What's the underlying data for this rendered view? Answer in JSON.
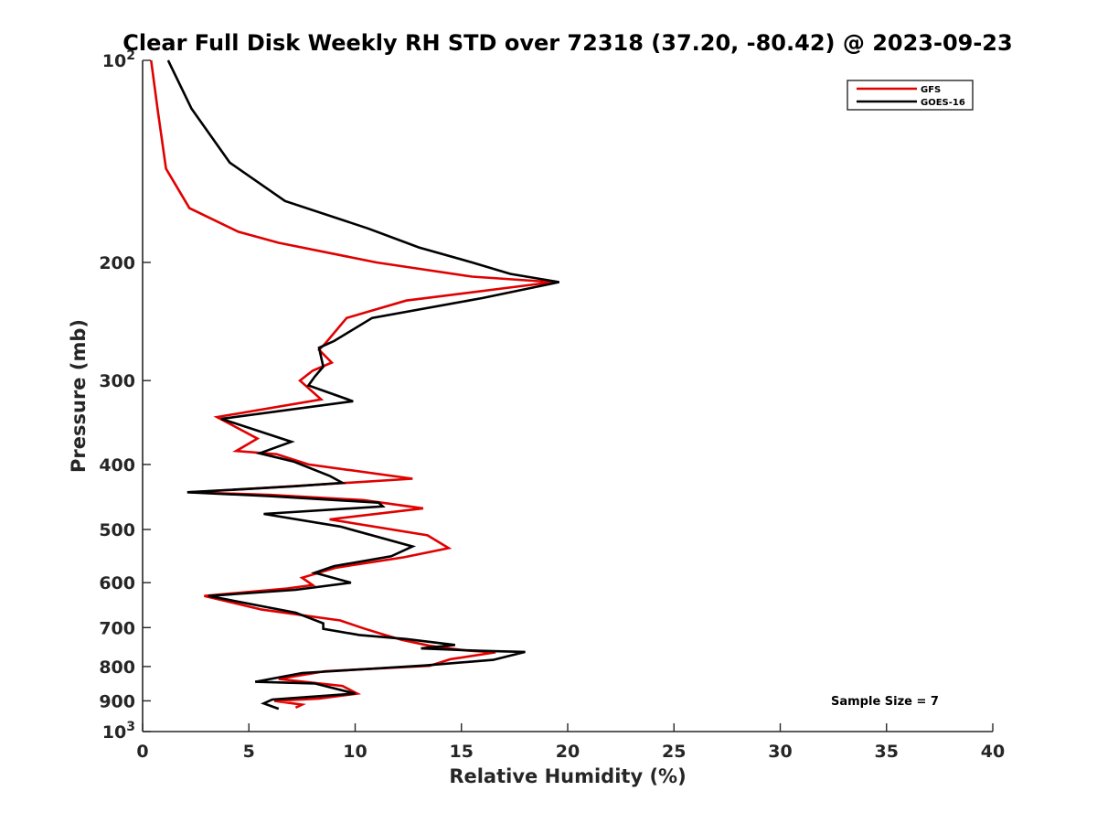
{
  "chart_data": {
    "type": "line",
    "title": "Clear Full Disk Weekly RH STD over 72318 (37.20, -80.42) @ 2023-09-23",
    "xlabel": "Relative Humidity (%)",
    "ylabel": "Pressure (mb)",
    "xlim": [
      0,
      40
    ],
    "ylim": [
      100,
      1000
    ],
    "yscale": "log",
    "y_reversed": true,
    "grid": false,
    "legend_position": "top-right",
    "x_ticks": [
      "0",
      "5",
      "10",
      "15",
      "20",
      "25",
      "30",
      "35",
      "40"
    ],
    "y_ticks": [
      {
        "value": 100,
        "base": "10",
        "exp": "2"
      },
      {
        "value": 200,
        "base": "200",
        "exp": ""
      },
      {
        "value": 300,
        "base": "300",
        "exp": ""
      },
      {
        "value": 400,
        "base": "400",
        "exp": ""
      },
      {
        "value": 500,
        "base": "500",
        "exp": ""
      },
      {
        "value": 600,
        "base": "600",
        "exp": ""
      },
      {
        "value": 700,
        "base": "700",
        "exp": ""
      },
      {
        "value": 800,
        "base": "800",
        "exp": ""
      },
      {
        "value": 900,
        "base": "900",
        "exp": ""
      },
      {
        "value": 1000,
        "base": "10",
        "exp": "3"
      }
    ],
    "annotation": "Sample Size = 7",
    "series": [
      {
        "name": "GFS",
        "color": "#e00000",
        "points": [
          [
            0.4,
            100
          ],
          [
            0.7,
            118
          ],
          [
            1.1,
            145
          ],
          [
            2.2,
            166
          ],
          [
            4.5,
            180
          ],
          [
            6.4,
            187
          ],
          [
            11.0,
            200
          ],
          [
            15.5,
            210
          ],
          [
            19.3,
            214
          ],
          [
            12.4,
            228
          ],
          [
            9.6,
            242
          ],
          [
            8.6,
            264
          ],
          [
            8.3,
            270
          ],
          [
            8.9,
            282
          ],
          [
            8.0,
            290
          ],
          [
            7.4,
            300
          ],
          [
            8.4,
            320
          ],
          [
            3.5,
            340
          ],
          [
            5.4,
            366
          ],
          [
            4.4,
            382
          ],
          [
            6.3,
            386
          ],
          [
            7.8,
            400
          ],
          [
            12.7,
            420
          ],
          [
            5.0,
            435
          ],
          [
            2.2,
            440
          ],
          [
            6.0,
            444
          ],
          [
            10.4,
            452
          ],
          [
            13.2,
            465
          ],
          [
            8.8,
            483
          ],
          [
            13.4,
            510
          ],
          [
            14.4,
            533
          ],
          [
            12.3,
            550
          ],
          [
            9.1,
            570
          ],
          [
            7.5,
            590
          ],
          [
            8.0,
            605
          ],
          [
            6.8,
            612
          ],
          [
            2.9,
            628
          ],
          [
            5.6,
            658
          ],
          [
            9.3,
            683
          ],
          [
            10.4,
            702
          ],
          [
            11.4,
            718
          ],
          [
            12.2,
            730
          ],
          [
            13.5,
            745
          ],
          [
            15.2,
            757
          ],
          [
            16.6,
            762
          ],
          [
            14.5,
            780
          ],
          [
            13.5,
            798
          ],
          [
            8.6,
            813
          ],
          [
            6.4,
            835
          ],
          [
            9.4,
            855
          ],
          [
            10.1,
            878
          ],
          [
            8.3,
            893
          ],
          [
            6.2,
            900
          ],
          [
            7.5,
            912
          ],
          [
            7.2,
            921
          ]
        ]
      },
      {
        "name": "GOES-16",
        "color": "#000000",
        "points": [
          [
            1.2,
            100
          ],
          [
            2.3,
            118
          ],
          [
            4.1,
            142
          ],
          [
            6.7,
            162
          ],
          [
            10.6,
            178
          ],
          [
            13.0,
            190
          ],
          [
            15.5,
            200
          ],
          [
            17.3,
            208
          ],
          [
            19.6,
            214
          ],
          [
            16.0,
            226
          ],
          [
            10.8,
            242
          ],
          [
            9.0,
            262
          ],
          [
            8.3,
            268
          ],
          [
            8.5,
            286
          ],
          [
            8.1,
            296
          ],
          [
            7.8,
            305
          ],
          [
            9.9,
            322
          ],
          [
            3.7,
            342
          ],
          [
            7.0,
            370
          ],
          [
            5.5,
            385
          ],
          [
            7.1,
            396
          ],
          [
            8.8,
            416
          ],
          [
            9.4,
            426
          ],
          [
            7.2,
            431
          ],
          [
            2.1,
            440
          ],
          [
            6.0,
            446
          ],
          [
            11.1,
            456
          ],
          [
            11.3,
            462
          ],
          [
            5.7,
            474
          ],
          [
            9.3,
            495
          ],
          [
            12.7,
            530
          ],
          [
            11.7,
            548
          ],
          [
            9.0,
            567
          ],
          [
            8.1,
            580
          ],
          [
            9.8,
            600
          ],
          [
            7.2,
            615
          ],
          [
            3.1,
            628
          ],
          [
            7.2,
            665
          ],
          [
            8.5,
            690
          ],
          [
            8.5,
            703
          ],
          [
            10.2,
            718
          ],
          [
            12.4,
            728
          ],
          [
            14.7,
            743
          ],
          [
            13.1,
            752
          ],
          [
            15.9,
            758
          ],
          [
            18.0,
            761
          ],
          [
            16.5,
            782
          ],
          [
            13.3,
            797
          ],
          [
            7.5,
            818
          ],
          [
            5.3,
            843
          ],
          [
            8.1,
            848
          ],
          [
            10.0,
            878
          ],
          [
            6.1,
            896
          ],
          [
            5.7,
            908
          ],
          [
            6.4,
            925
          ]
        ]
      }
    ]
  }
}
